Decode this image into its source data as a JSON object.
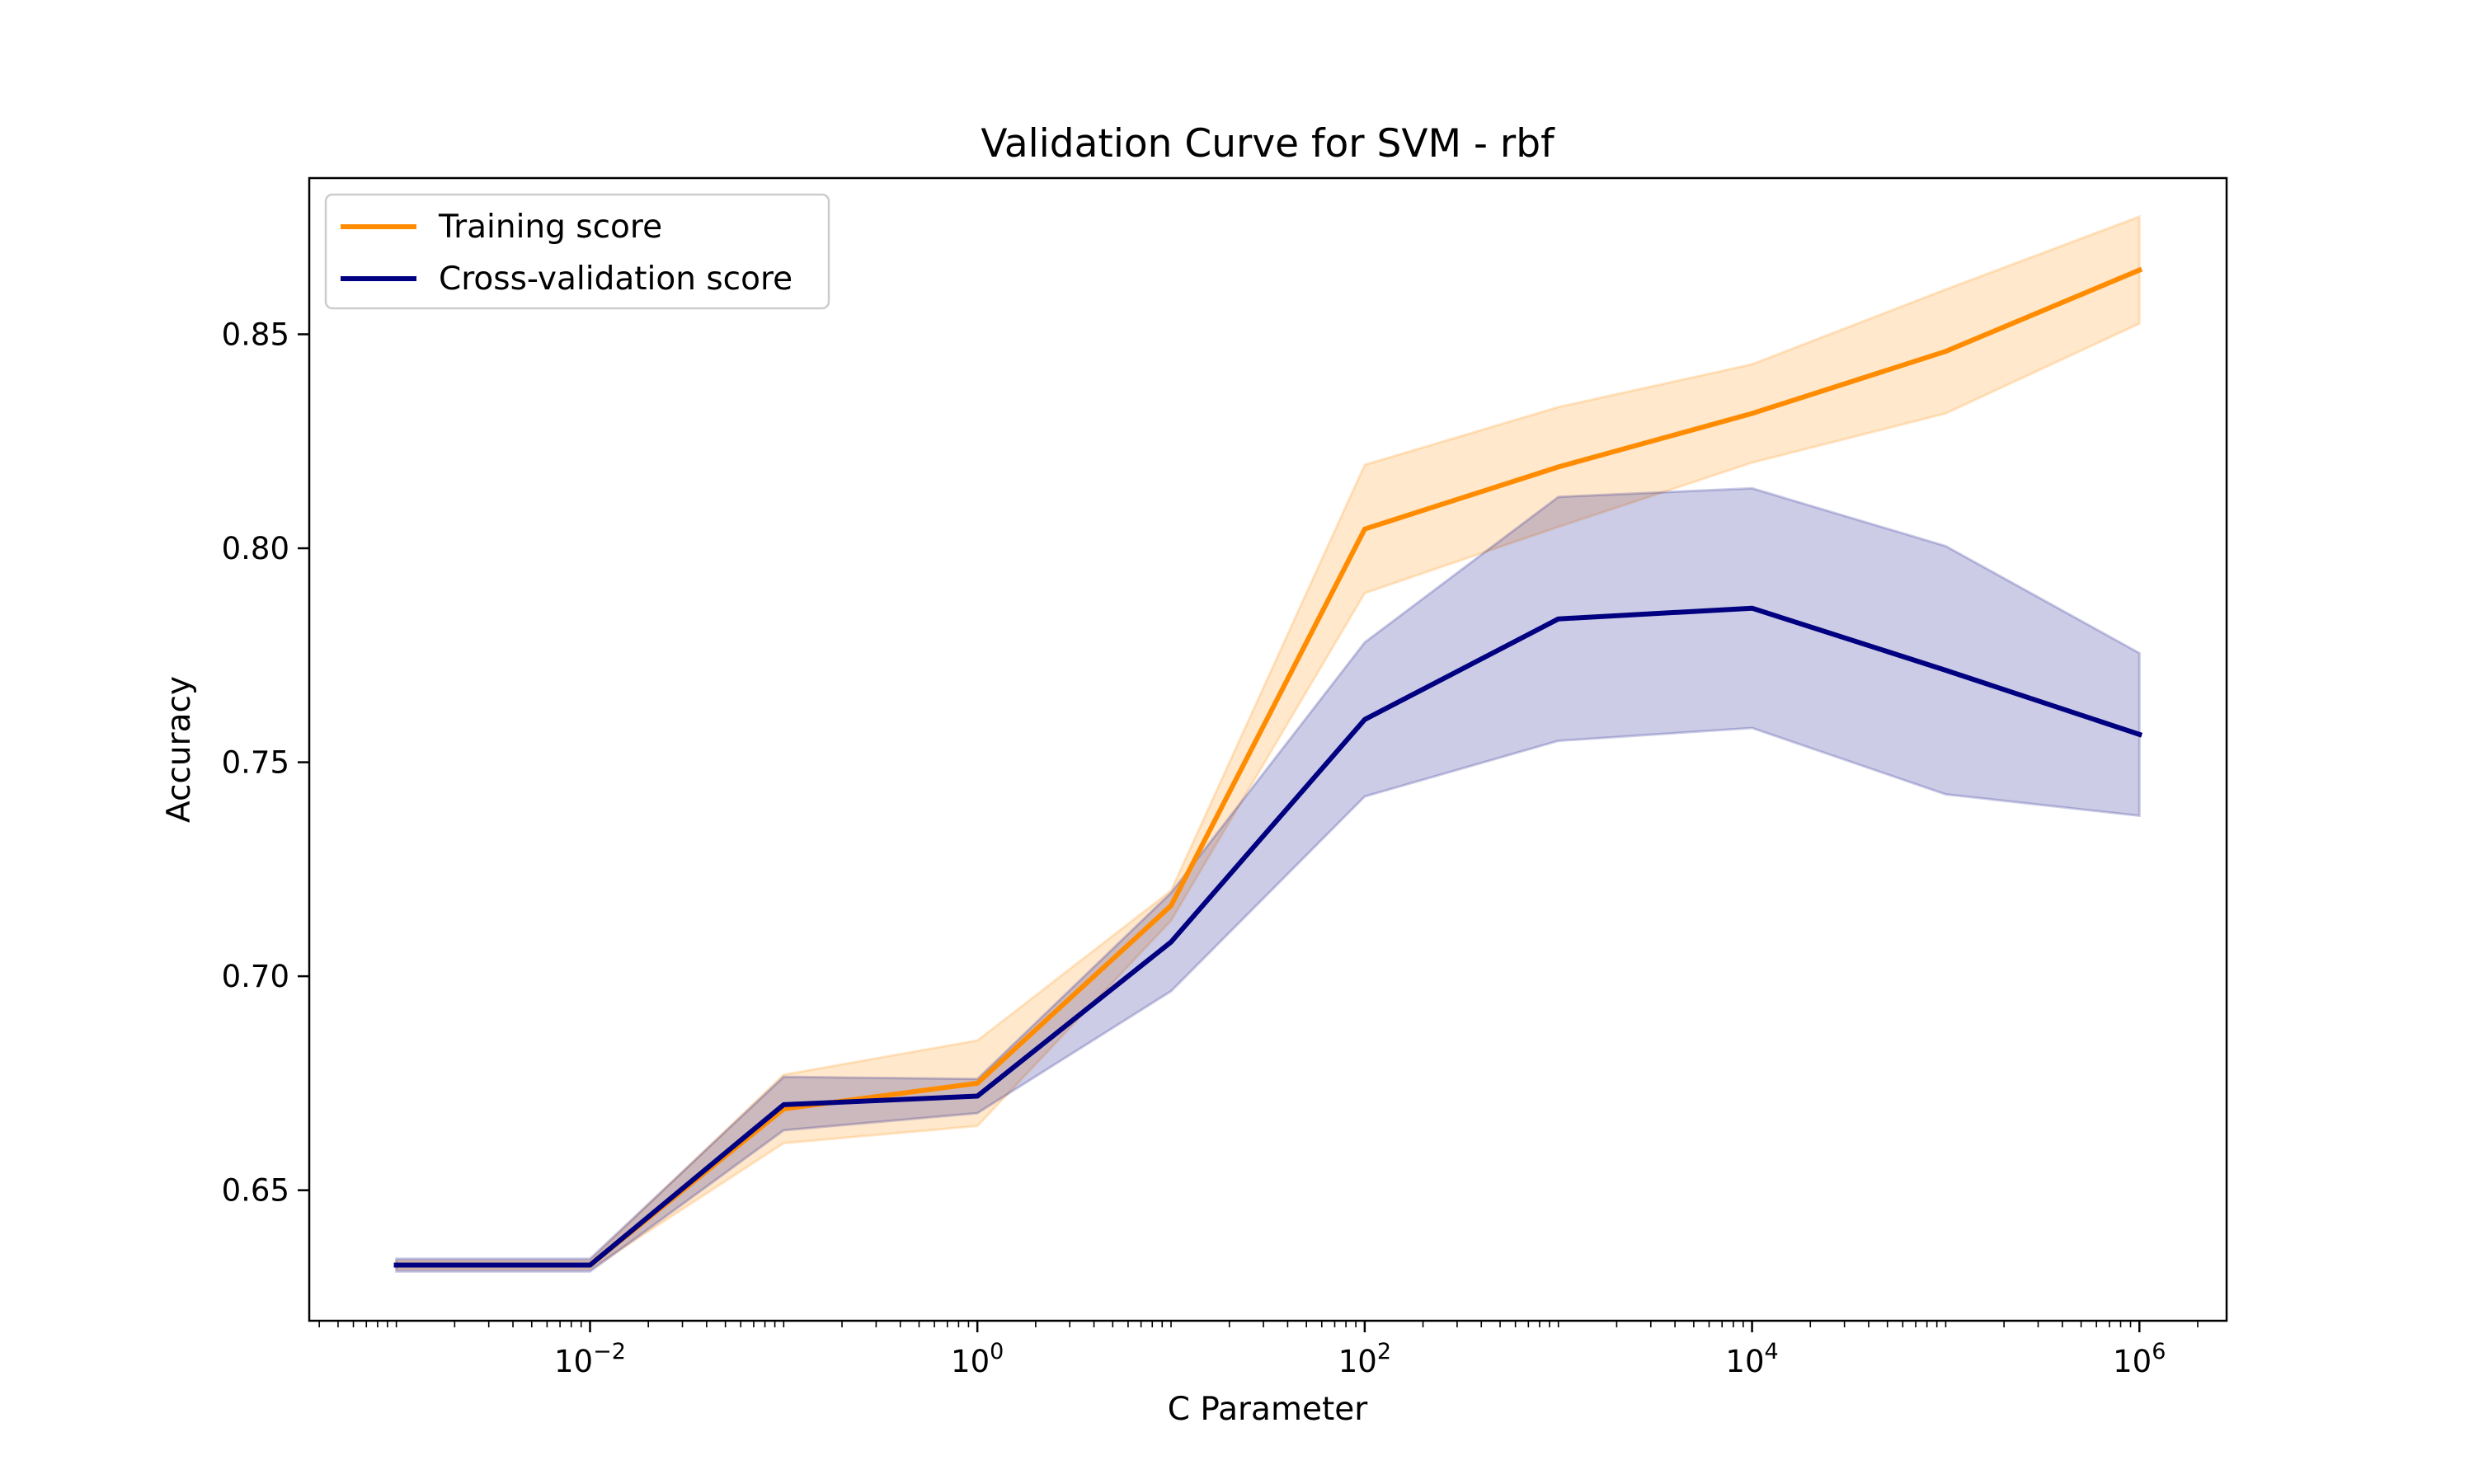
{
  "chart_data": {
    "type": "line",
    "title": "Validation Curve for SVM - rbf",
    "xlabel": "C Parameter",
    "ylabel": "Accuracy",
    "xscale": "log",
    "xlim": [
      0.000355,
      2820000
    ],
    "ylim": [
      0.6195,
      0.8865
    ],
    "x": [
      0.001,
      0.01,
      0.1,
      1,
      10,
      100,
      1000,
      10000,
      100000,
      1000000
    ],
    "x_ticks": [
      {
        "value": 0.01,
        "base": "10",
        "exp": "−2"
      },
      {
        "value": 1,
        "base": "10",
        "exp": "0"
      },
      {
        "value": 100,
        "base": "10",
        "exp": "2"
      },
      {
        "value": 10000,
        "base": "10",
        "exp": "4"
      },
      {
        "value": 1000000,
        "base": "10",
        "exp": "6"
      }
    ],
    "y_ticks": [
      {
        "value": 0.65,
        "label": "0.65"
      },
      {
        "value": 0.7,
        "label": "0.70"
      },
      {
        "value": 0.75,
        "label": "0.75"
      },
      {
        "value": 0.8,
        "label": "0.80"
      },
      {
        "value": 0.85,
        "label": "0.85"
      }
    ],
    "legend_position": "upper-left",
    "grid": false,
    "series": [
      {
        "name": "Training score",
        "color": "#ff8c00",
        "values": [
          0.6325,
          0.6325,
          0.669,
          0.675,
          0.7165,
          0.8045,
          0.819,
          0.8315,
          0.846,
          0.865
        ],
        "lower": [
          0.6315,
          0.6315,
          0.661,
          0.665,
          0.713,
          0.7895,
          0.805,
          0.82,
          0.8315,
          0.8525
        ],
        "upper": [
          0.6335,
          0.6335,
          0.677,
          0.685,
          0.72,
          0.8195,
          0.833,
          0.843,
          0.8605,
          0.8775
        ]
      },
      {
        "name": "Cross-validation score",
        "color": "#000080",
        "values": [
          0.6325,
          0.6325,
          0.67,
          0.672,
          0.708,
          0.76,
          0.7835,
          0.786,
          0.7715,
          0.7565
        ],
        "lower": [
          0.631,
          0.631,
          0.664,
          0.668,
          0.6965,
          0.742,
          0.755,
          0.758,
          0.7425,
          0.7375
        ],
        "upper": [
          0.634,
          0.634,
          0.6765,
          0.676,
          0.7195,
          0.778,
          0.812,
          0.814,
          0.8005,
          0.7755
        ]
      }
    ]
  }
}
